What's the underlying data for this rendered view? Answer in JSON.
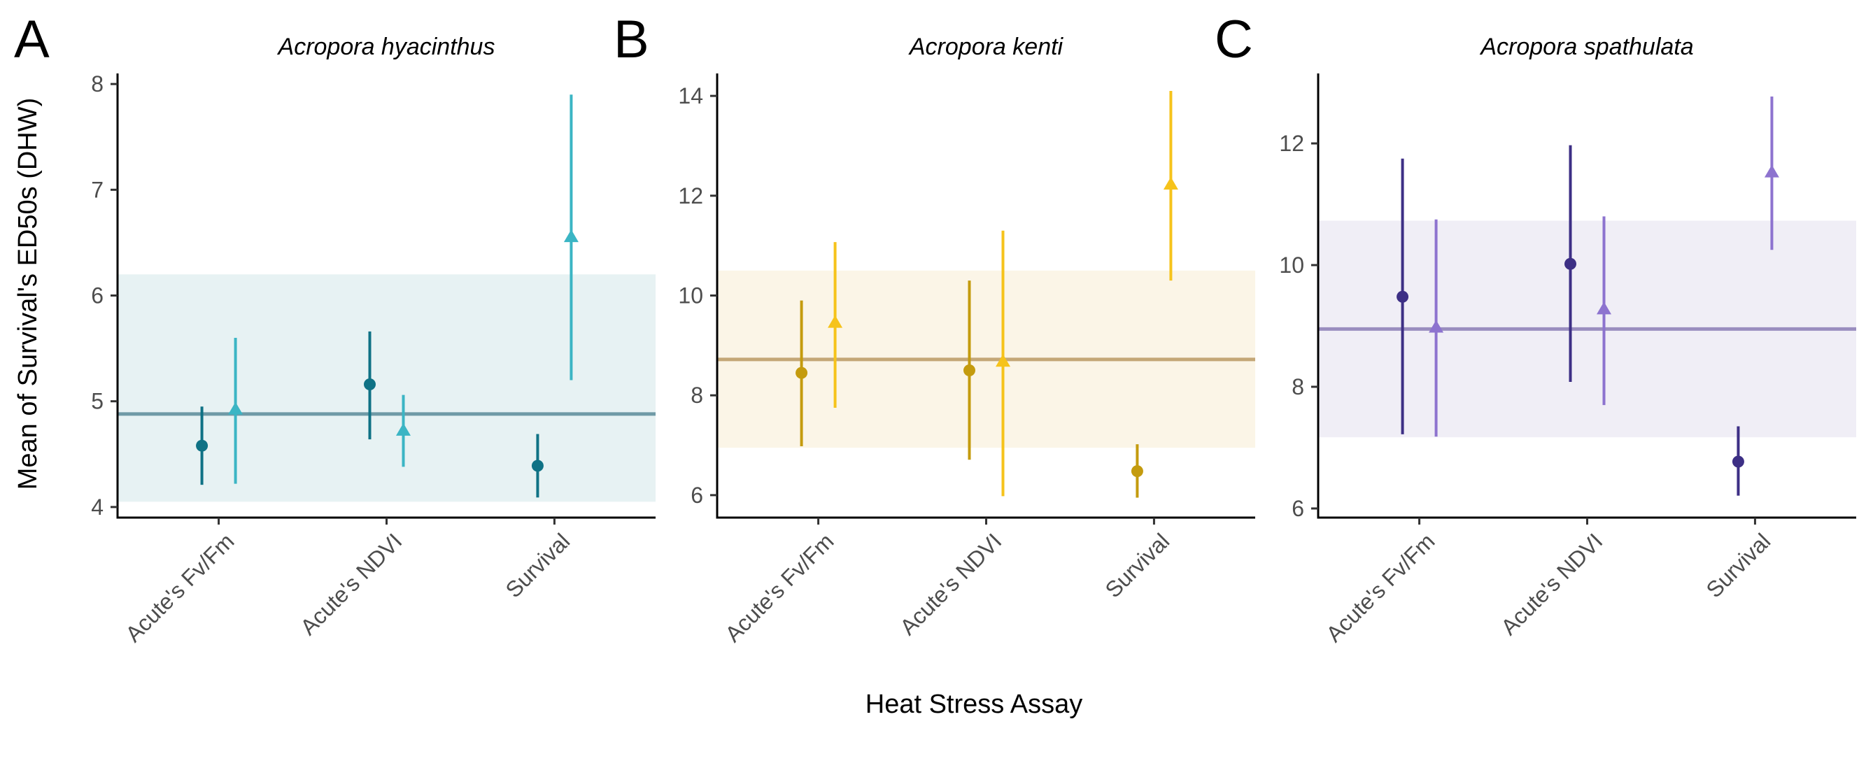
{
  "figure": {
    "xlabel": "Heat Stress Assay",
    "ylabel": "Mean of Survival's ED50s (DHW)"
  },
  "chart_data": [
    {
      "type": "scatter",
      "panel": "A",
      "title": "Acropora hyacinthus",
      "categories": [
        "Acute's Fv/Fm",
        "Acute's NDVI",
        "Survival"
      ],
      "ylim": [
        3.9,
        8.1
      ],
      "yticks": [
        4,
        5,
        6,
        7,
        8
      ],
      "grid": false,
      "colors": {
        "series1": "#0f7285",
        "series2": "#3bb5c4",
        "mean_line": "#6f9aa6",
        "band": "#e7f2f3"
      },
      "reference": {
        "mean": 4.88,
        "band": [
          4.05,
          6.2
        ]
      },
      "series": [
        {
          "marker": "circle",
          "values": [
            4.58,
            5.16,
            4.39
          ],
          "lower": [
            4.21,
            4.64,
            4.09
          ],
          "upper": [
            4.95,
            5.66,
            4.69
          ]
        },
        {
          "marker": "triangle",
          "values": [
            4.92,
            4.72,
            6.55
          ],
          "lower": [
            4.22,
            4.38,
            5.2
          ],
          "upper": [
            5.6,
            5.06,
            7.9
          ]
        }
      ]
    },
    {
      "type": "scatter",
      "panel": "B",
      "title": "Acropora kenti",
      "categories": [
        "Acute's Fv/Fm",
        "Acute's NDVI",
        "Survival"
      ],
      "ylim": [
        5.55,
        14.45
      ],
      "yticks": [
        6,
        8,
        10,
        12,
        14
      ],
      "grid": false,
      "colors": {
        "series1": "#c49b0e",
        "series2": "#f6c31b",
        "mean_line": "#c4a777",
        "band": "#fbf5e7"
      },
      "reference": {
        "mean": 8.72,
        "band": [
          6.95,
          10.5
        ]
      },
      "series": [
        {
          "marker": "circle",
          "values": [
            8.45,
            8.5,
            6.48
          ],
          "lower": [
            6.98,
            6.71,
            5.95
          ],
          "upper": [
            9.9,
            10.3,
            7.02
          ]
        },
        {
          "marker": "triangle",
          "values": [
            9.45,
            8.67,
            12.22
          ],
          "lower": [
            7.75,
            5.98,
            10.3
          ],
          "upper": [
            11.07,
            11.3,
            14.1
          ]
        }
      ]
    },
    {
      "type": "scatter",
      "panel": "C",
      "title": "Acropora spathulata",
      "categories": [
        "Acute's Fv/Fm",
        "Acute's NDVI",
        "Survival"
      ],
      "ylim": [
        5.85,
        13.15
      ],
      "yticks": [
        6,
        8,
        10,
        12
      ],
      "grid": false,
      "colors": {
        "series1": "#3d2f85",
        "series2": "#8d73cf",
        "mean_line": "#9a8ebf",
        "band": "#f0eef6"
      },
      "reference": {
        "mean": 8.95,
        "band": [
          7.17,
          10.73
        ]
      },
      "series": [
        {
          "marker": "circle",
          "values": [
            9.48,
            10.02,
            6.77
          ],
          "lower": [
            7.22,
            8.08,
            6.21
          ],
          "upper": [
            11.75,
            11.97,
            7.35
          ]
        },
        {
          "marker": "triangle",
          "values": [
            8.97,
            9.27,
            11.52
          ],
          "lower": [
            7.18,
            7.7,
            10.25
          ],
          "upper": [
            10.75,
            10.8,
            12.77
          ]
        }
      ]
    }
  ]
}
